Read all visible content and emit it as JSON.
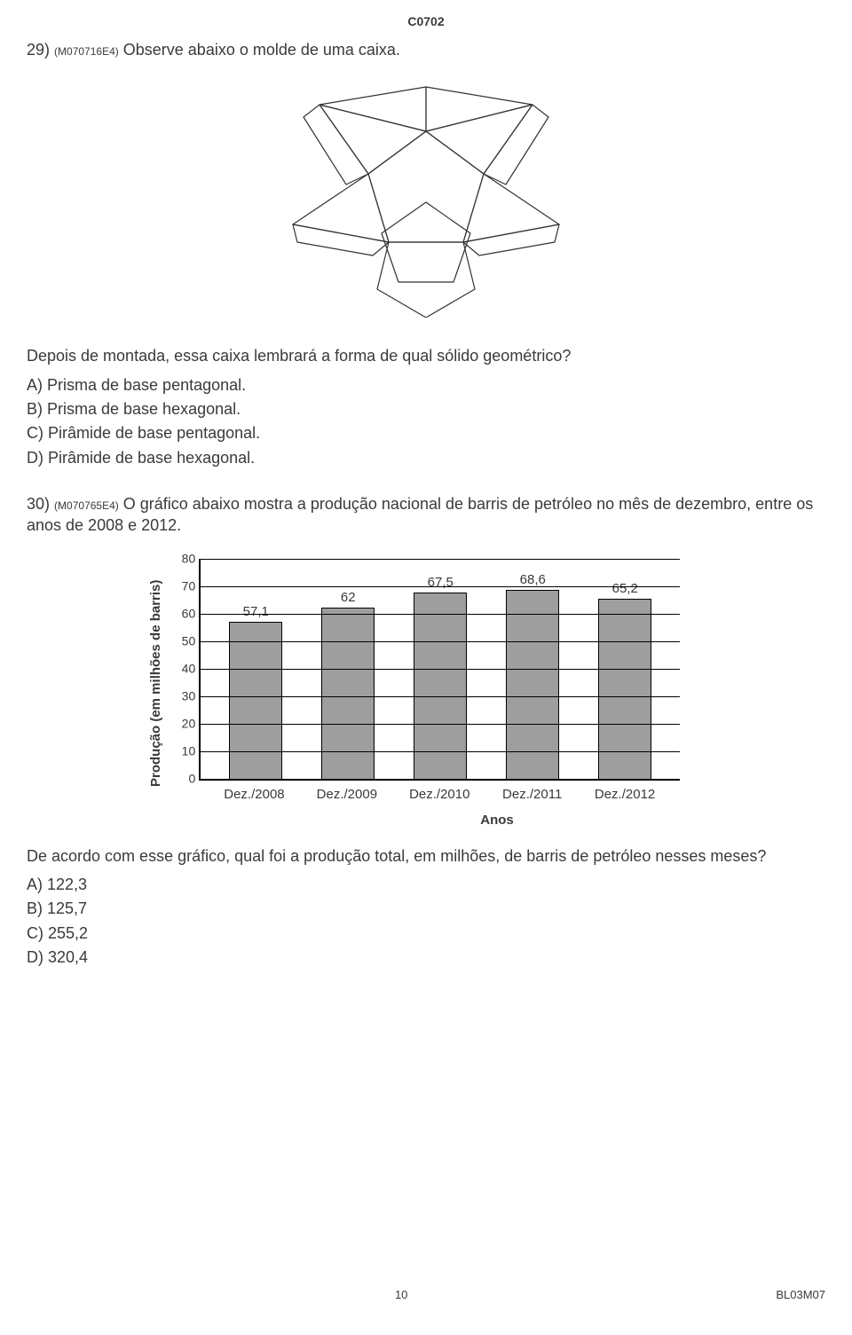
{
  "header_code": "C0702",
  "q29": {
    "number": "29)",
    "code": "(M070716E4)",
    "prompt": "Observe abaixo o molde de uma caixa.",
    "followup": "Depois de montada, essa caixa lembrará a forma de qual sólido geométrico?",
    "options": {
      "A": "A) Prisma de base pentagonal.",
      "B": "B) Prisma de base hexagonal.",
      "C": "C) Pirâmide de base pentagonal.",
      "D": "D) Pirâmide de base hexagonal."
    }
  },
  "q30": {
    "number": "30)",
    "code": "(M070765E4)",
    "prompt": "O gráfico abaixo mostra a produção nacional de barris de petróleo no mês de dezembro, entre os anos de 2008 e 2012.",
    "followup": "De acordo com esse gráfico, qual foi a produção total, em milhões, de barris de petróleo nesses meses?",
    "options": {
      "A": "A) 122,3",
      "B": "B) 125,7",
      "C": "C) 255,2",
      "D": "D) 320,4"
    }
  },
  "chart": {
    "type": "bar",
    "ylabel": "Produção (em milhões de barris)",
    "xlabel": "Anos",
    "ymin": 0,
    "ymax": 80,
    "ytick_step": 10,
    "yticks": [
      0,
      10,
      20,
      30,
      40,
      50,
      60,
      70,
      80
    ],
    "bar_color": "#9e9e9e",
    "bar_border": "#000000",
    "grid_color": "#000000",
    "background": "#ffffff",
    "bars": [
      {
        "label": "Dez./2008",
        "value": 57.1,
        "text": "57,1"
      },
      {
        "label": "Dez./2009",
        "value": 62,
        "text": "62"
      },
      {
        "label": "Dez./2010",
        "value": 67.5,
        "text": "67,5"
      },
      {
        "label": "Dez./2011",
        "value": 68.6,
        "text": "68,6"
      },
      {
        "label": "Dez./2012",
        "value": 65.2,
        "text": "65,2"
      }
    ]
  },
  "footer": {
    "page": "10",
    "code": "BL03M07"
  }
}
